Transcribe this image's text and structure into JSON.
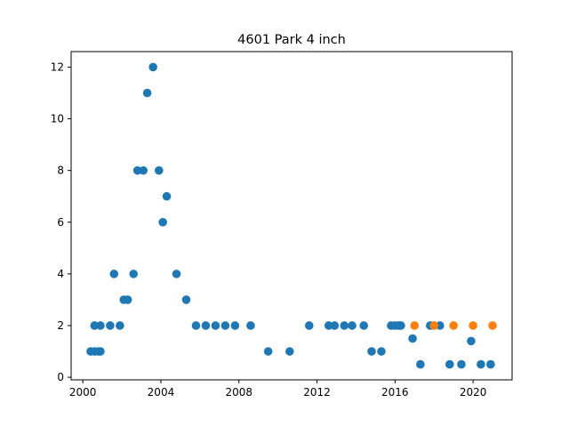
{
  "chart_data": {
    "type": "scatter",
    "title": "4601 Park 4 inch",
    "xlabel": "",
    "ylabel": "",
    "xlim": [
      1999.4,
      2022.0
    ],
    "ylim": [
      -0.1,
      12.6
    ],
    "grid": false,
    "x_ticks": [
      2000,
      2004,
      2008,
      2012,
      2016,
      2020
    ],
    "y_ticks": [
      0,
      2,
      4,
      6,
      8,
      10,
      12
    ],
    "colors": {
      "series1": "#1f77b4",
      "series2": "#ff7f0e"
    },
    "series": [
      {
        "color": "#1f77b4",
        "points": [
          {
            "x": 2000.4,
            "y": 1
          },
          {
            "x": 2000.6,
            "y": 1
          },
          {
            "x": 2000.8,
            "y": 1
          },
          {
            "x": 2000.9,
            "y": 1
          },
          {
            "x": 2000.6,
            "y": 2
          },
          {
            "x": 2000.9,
            "y": 2
          },
          {
            "x": 2001.4,
            "y": 2
          },
          {
            "x": 2001.6,
            "y": 4
          },
          {
            "x": 2001.9,
            "y": 2
          },
          {
            "x": 2002.1,
            "y": 3
          },
          {
            "x": 2002.3,
            "y": 3
          },
          {
            "x": 2002.6,
            "y": 4
          },
          {
            "x": 2002.8,
            "y": 8
          },
          {
            "x": 2003.1,
            "y": 8
          },
          {
            "x": 2003.3,
            "y": 11
          },
          {
            "x": 2003.6,
            "y": 12
          },
          {
            "x": 2003.9,
            "y": 8
          },
          {
            "x": 2004.1,
            "y": 6
          },
          {
            "x": 2004.3,
            "y": 7
          },
          {
            "x": 2004.8,
            "y": 4
          },
          {
            "x": 2005.3,
            "y": 3
          },
          {
            "x": 2005.8,
            "y": 2
          },
          {
            "x": 2006.3,
            "y": 2
          },
          {
            "x": 2006.8,
            "y": 2
          },
          {
            "x": 2007.3,
            "y": 2
          },
          {
            "x": 2007.8,
            "y": 2
          },
          {
            "x": 2008.6,
            "y": 2
          },
          {
            "x": 2009.5,
            "y": 1
          },
          {
            "x": 2010.6,
            "y": 1
          },
          {
            "x": 2011.6,
            "y": 2
          },
          {
            "x": 2012.6,
            "y": 2
          },
          {
            "x": 2012.9,
            "y": 2
          },
          {
            "x": 2013.4,
            "y": 2
          },
          {
            "x": 2013.8,
            "y": 2
          },
          {
            "x": 2014.4,
            "y": 2
          },
          {
            "x": 2014.8,
            "y": 1
          },
          {
            "x": 2015.3,
            "y": 1
          },
          {
            "x": 2015.8,
            "y": 2
          },
          {
            "x": 2016.0,
            "y": 2
          },
          {
            "x": 2016.2,
            "y": 2
          },
          {
            "x": 2016.3,
            "y": 2
          },
          {
            "x": 2016.9,
            "y": 1.5
          },
          {
            "x": 2017.3,
            "y": 0.5
          },
          {
            "x": 2017.8,
            "y": 2
          },
          {
            "x": 2018.3,
            "y": 2
          },
          {
            "x": 2018.8,
            "y": 0.5
          },
          {
            "x": 2019.4,
            "y": 0.5
          },
          {
            "x": 2019.9,
            "y": 1.4
          },
          {
            "x": 2020.4,
            "y": 0.5
          },
          {
            "x": 2020.9,
            "y": 0.5
          }
        ]
      },
      {
        "color": "#ff7f0e",
        "points": [
          {
            "x": 2017.0,
            "y": 2
          },
          {
            "x": 2018.0,
            "y": 2
          },
          {
            "x": 2019.0,
            "y": 2
          },
          {
            "x": 2020.0,
            "y": 2
          },
          {
            "x": 2021.0,
            "y": 2
          }
        ]
      }
    ]
  }
}
